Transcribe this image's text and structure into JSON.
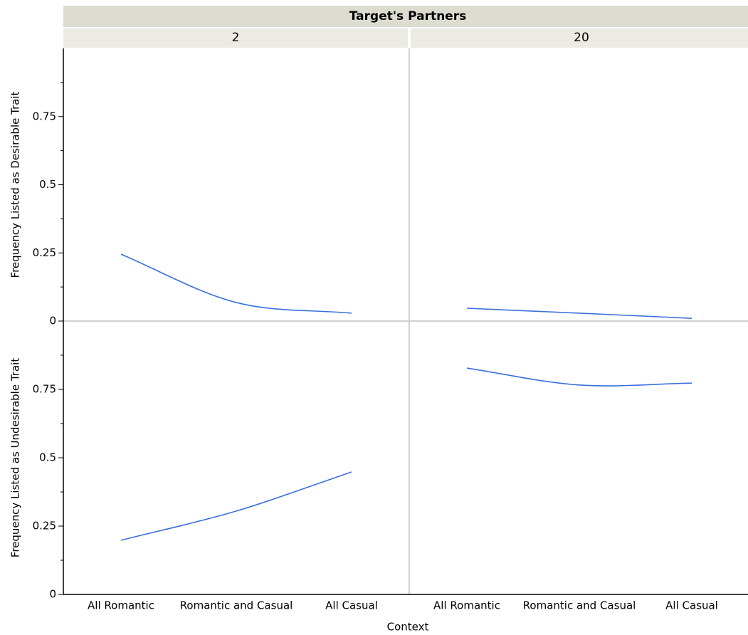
{
  "chart_data": {
    "type": "line",
    "title": "Target's Partners",
    "x_label": "Context",
    "categories": [
      "All Romantic",
      "Romantic and Casual",
      "All Casual"
    ],
    "columns": [
      "2",
      "20"
    ],
    "rows": [
      {
        "y_label": "Frequency Listed as Desirable Trait",
        "ylim": [
          0,
          1
        ],
        "yticks": [
          0,
          0.25,
          0.5,
          0.75
        ],
        "minor_yticks": [
          0.125,
          0.375,
          0.625,
          0.875
        ],
        "panels": [
          {
            "color": "#3a6fdc",
            "values": [
              0.245,
              0.068,
              0.029
            ]
          },
          {
            "color": "#3a6fdc",
            "values": [
              0.047,
              0.029,
              0.01
            ]
          }
        ]
      },
      {
        "y_label": "Frequency Listed as Undesirable Trait",
        "ylim": [
          0,
          1
        ],
        "yticks": [
          0,
          0.25,
          0.5,
          0.75
        ],
        "minor_yticks": [
          0.125,
          0.375,
          0.625,
          0.875
        ],
        "panels": [
          {
            "color": "#3a6fdc",
            "values": [
              0.198,
              0.305,
              0.448
            ]
          },
          {
            "color": "#3a6fdc",
            "values": [
              0.828,
              0.766,
              0.773
            ]
          }
        ]
      }
    ]
  }
}
